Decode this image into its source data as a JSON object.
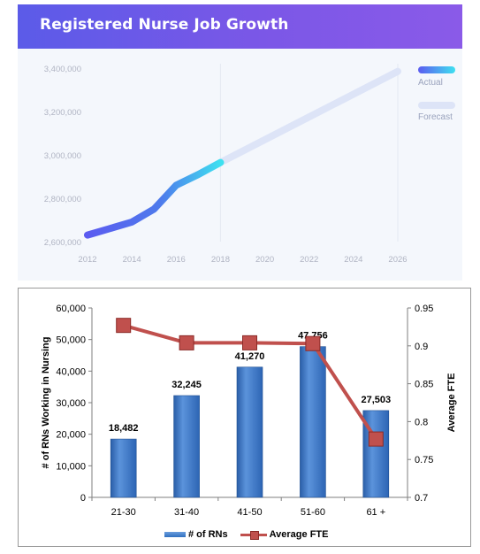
{
  "top_chart": {
    "title": "Registered Nurse Job Growth",
    "legend": [
      {
        "label": "Actual",
        "color_start": "#5b5bf0",
        "color_end": "#3ee0f0"
      },
      {
        "label": "Forecast",
        "color": "#dde4f7"
      }
    ]
  },
  "bottom_chart": {
    "legend": [
      {
        "label": "# of RNs"
      },
      {
        "label": "Average FTE"
      }
    ]
  },
  "chart_data": [
    {
      "type": "line",
      "title": "Registered Nurse Job Growth",
      "x_ticks": [
        "2012",
        "2014",
        "2016",
        "2018",
        "2020",
        "2022",
        "2024",
        "2026"
      ],
      "y_ticks": [
        "2,600,000",
        "2,800,000",
        "3,000,000",
        "3,200,000",
        "3,400,000"
      ],
      "xlim": [
        2012,
        2026
      ],
      "ylim": [
        2600000,
        3400000
      ],
      "grid": "vertical",
      "legend_position": "right",
      "series": [
        {
          "name": "Actual",
          "x": [
            2012,
            2013,
            2014,
            2015,
            2016,
            2017,
            2018
          ],
          "y": [
            2630000,
            2660000,
            2690000,
            2750000,
            2860000,
            2910000,
            2965000
          ]
        },
        {
          "name": "Forecast",
          "x": [
            2018,
            2026
          ],
          "y": [
            2965000,
            3385000
          ]
        }
      ]
    },
    {
      "type": "bar",
      "categories": [
        "21-30",
        "31-40",
        "41-50",
        "51-60",
        "61 +"
      ],
      "ylabel": "# of RNs Working in Nursing",
      "y2label": "Average FTE",
      "ylim": [
        0,
        60000
      ],
      "y2lim": [
        0.7,
        0.95
      ],
      "y_ticks": [
        "0",
        "10,000",
        "20,000",
        "30,000",
        "40,000",
        "50,000",
        "60,000"
      ],
      "y2_ticks": [
        "0.7",
        "0.75",
        "0.8",
        "0.85",
        "0.9",
        "0.95"
      ],
      "legend_position": "bottom",
      "series": [
        {
          "name": "# of RNs",
          "type": "bar",
          "values": [
            18482,
            32245,
            41270,
            47756,
            27503
          ],
          "labels": [
            "18,482",
            "32,245",
            "41,270",
            "47,756",
            "27,503"
          ]
        },
        {
          "name": "Average FTE",
          "type": "line",
          "axis": "y2",
          "values": [
            0.927,
            0.904,
            0.904,
            0.903,
            0.777
          ]
        }
      ]
    }
  ]
}
